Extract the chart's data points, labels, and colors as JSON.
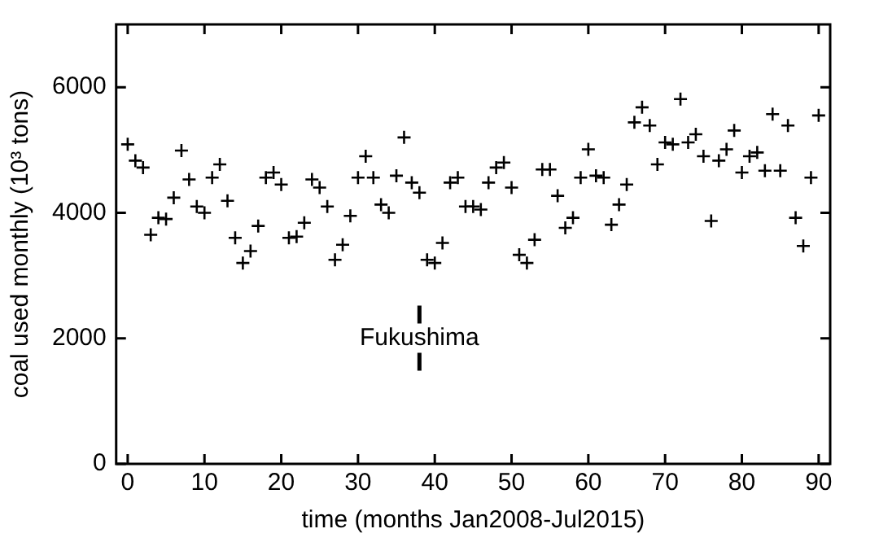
{
  "chart_data": {
    "type": "scatter",
    "xlabel": "time (months Jan2008-Jul2015)",
    "ylabel": "coal used monthly (10³ tons)",
    "x": [
      0,
      1,
      2,
      3,
      4,
      5,
      6,
      7,
      8,
      9,
      10,
      11,
      12,
      13,
      14,
      15,
      16,
      17,
      18,
      19,
      20,
      21,
      22,
      23,
      24,
      25,
      26,
      27,
      28,
      29,
      30,
      31,
      32,
      33,
      34,
      35,
      36,
      37,
      38,
      39,
      40,
      41,
      42,
      43,
      44,
      45,
      46,
      47,
      48,
      49,
      50,
      51,
      52,
      53,
      54,
      55,
      56,
      57,
      58,
      59,
      60,
      61,
      62,
      63,
      64,
      65,
      66,
      67,
      68,
      69,
      70,
      71,
      72,
      73,
      74,
      75,
      76,
      77,
      78,
      79,
      80,
      81,
      82,
      83,
      84,
      85,
      86,
      87,
      88,
      89,
      90
    ],
    "series": [
      {
        "color": "#000000",
        "values": [
          5090,
          4830,
          4720,
          3650,
          3920,
          3900,
          4240,
          4990,
          4530,
          4100,
          4000,
          4560,
          4770,
          4190,
          3600,
          3200,
          3390,
          3790,
          4560,
          4640,
          4450,
          3600,
          3620,
          3840,
          4530,
          4400,
          4100,
          3250,
          3490,
          3950,
          4560,
          4900,
          4560,
          4130,
          4000,
          4590,
          5200,
          4480,
          4320,
          3250,
          3200,
          3520,
          4480,
          4560,
          4100,
          4100,
          4050,
          4480,
          4720,
          4800,
          4400,
          3330,
          3200,
          3570,
          4690,
          4690,
          4270,
          3760,
          3920,
          4560,
          5010,
          4590,
          4560,
          3810,
          4130,
          4450,
          5440,
          5680,
          5390,
          4770,
          5120,
          5090,
          5810,
          5120,
          5250,
          4900,
          3870,
          4830,
          5010,
          5310,
          4640,
          4900,
          4960,
          4670,
          5570,
          4670,
          5390,
          3920,
          3470,
          4560,
          5550
        ]
      }
    ],
    "xlim": [
      -1.5,
      91.5
    ],
    "ylim": [
      0,
      7000
    ],
    "xticks": [
      0,
      10,
      20,
      30,
      40,
      50,
      60,
      70,
      80,
      90
    ],
    "yticks": [
      0,
      2000,
      4000,
      6000
    ],
    "marker": "cross",
    "legend": false,
    "grid": false,
    "ref_lines": [
      {
        "axis": "x",
        "value": 38,
        "label": "Fukushima"
      }
    ]
  }
}
